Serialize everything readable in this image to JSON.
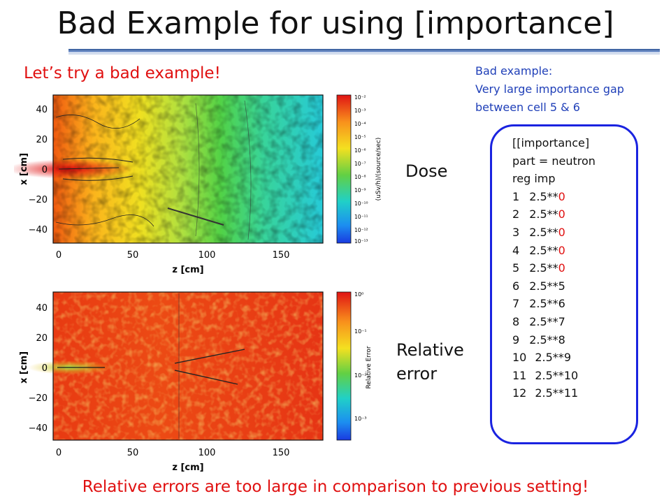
{
  "slide": {
    "title": "Bad Example for using [importance]",
    "subtitle": "Let’s try a bad example!",
    "note": [
      "Bad example:",
      "Very large importance gap",
      "between cell 5 & 6"
    ],
    "dose_label": "Dose",
    "error_label": [
      "Relative",
      "error"
    ],
    "footer": "Relative errors are too large in comparison to previous setting!"
  },
  "code": {
    "header": [
      "[[importance]",
      "part = neutron",
      "reg imp"
    ],
    "rows": [
      {
        "reg": "1",
        "base": "2.5**",
        "exp": "0",
        "highlight": true
      },
      {
        "reg": "2",
        "base": "2.5**",
        "exp": "0",
        "highlight": true
      },
      {
        "reg": "3",
        "base": "2.5**",
        "exp": "0",
        "highlight": true
      },
      {
        "reg": "4",
        "base": "2.5**",
        "exp": "0",
        "highlight": true
      },
      {
        "reg": "5",
        "base": "2.5**",
        "exp": "0",
        "highlight": true
      },
      {
        "reg": "6",
        "base": "2.5**",
        "exp": "5",
        "highlight": false
      },
      {
        "reg": "7",
        "base": "2.5**",
        "exp": "6",
        "highlight": false
      },
      {
        "reg": "8",
        "base": "2.5**",
        "exp": "7",
        "highlight": false
      },
      {
        "reg": "9",
        "base": "2.5**",
        "exp": "8",
        "highlight": false
      },
      {
        "reg": "10",
        "base": "2.5**",
        "exp": "9",
        "highlight": false
      },
      {
        "reg": "11",
        "base": "2.5**",
        "exp": "10",
        "highlight": false
      },
      {
        "reg": "12",
        "base": "2.5**",
        "exp": "11",
        "highlight": false
      }
    ]
  },
  "colors": {
    "accent_red": "#e01010",
    "note_blue": "#1f3fb8",
    "box_border": "#1a23e0"
  },
  "chart_data": [
    {
      "type": "heatmap",
      "xlabel": "z [cm]",
      "ylabel": "x [cm]",
      "xticks": [
        "0",
        "50",
        "100",
        "150"
      ],
      "yticks": [
        "40",
        "20",
        "0",
        "−20",
        "−40"
      ],
      "colorbar_label": "(uSv/h)/(source/sec)",
      "colorbar_ticks": [
        "10⁻²",
        "10⁻³",
        "10⁻⁴",
        "10⁻⁵",
        "10⁻⁶",
        "10⁻⁷",
        "10⁻⁸",
        "10⁻⁹",
        "10⁻¹⁰",
        "10⁻¹¹",
        "10⁻¹²",
        "10⁻¹³"
      ]
    },
    {
      "type": "heatmap",
      "xlabel": "z [cm]",
      "ylabel": "x [cm]",
      "xticks": [
        "0",
        "50",
        "100",
        "150"
      ],
      "yticks": [
        "40",
        "20",
        "0",
        "−20",
        "−40"
      ],
      "colorbar_label": "Relative Error",
      "colorbar_ticks": [
        "10⁰",
        "10⁻¹",
        "10⁻²",
        "10⁻³"
      ]
    }
  ]
}
